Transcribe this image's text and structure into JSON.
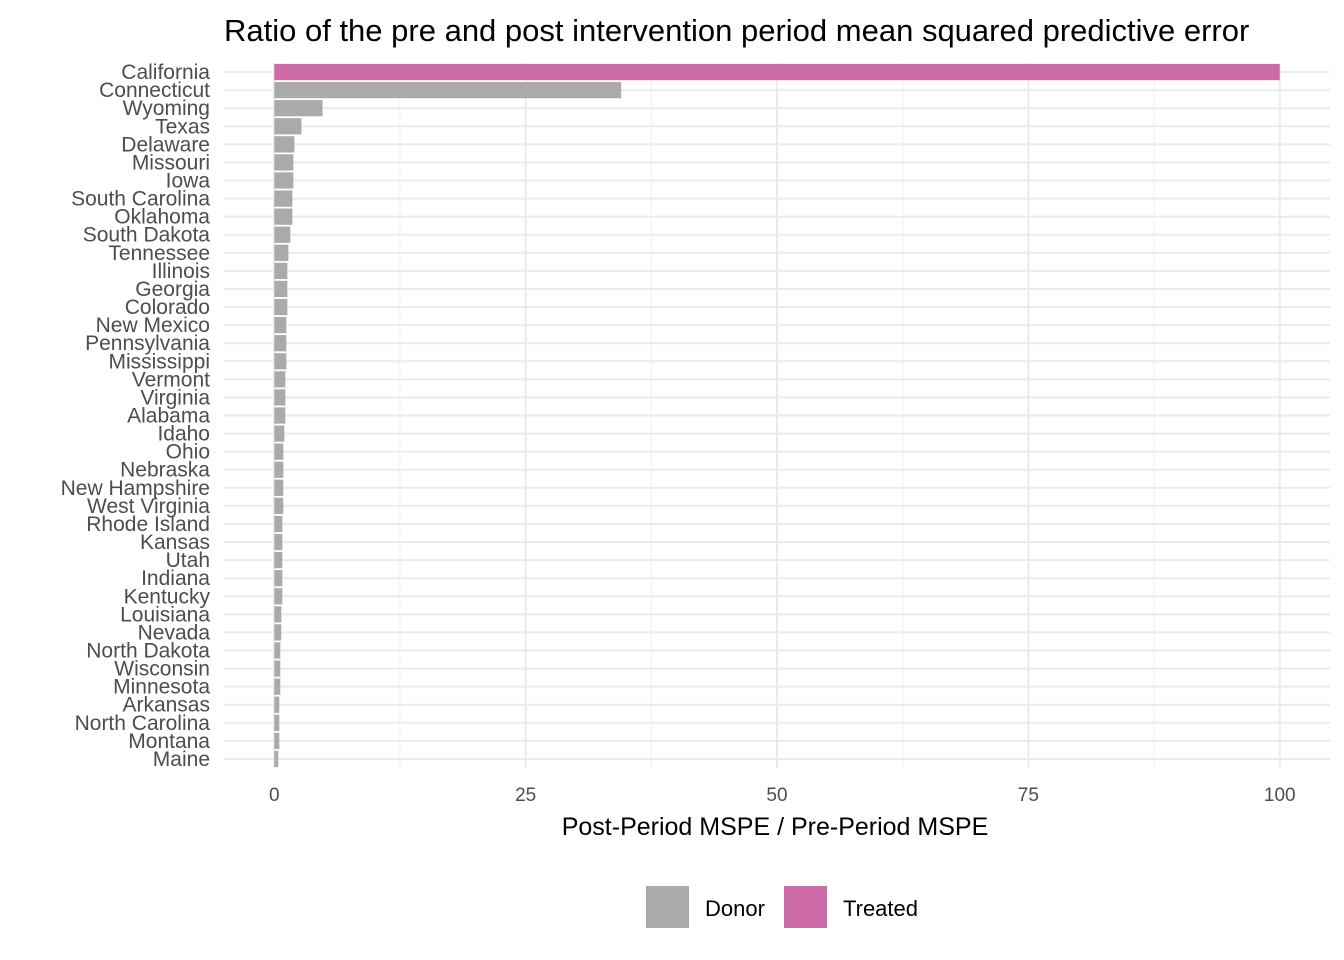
{
  "chart_data": {
    "type": "bar",
    "orientation": "horizontal",
    "title": "Ratio of the pre and post intervention period mean squared predictive error",
    "xlabel": "Post-Period MSPE / Pre-Period MSPE",
    "ylabel": "",
    "xlim": [
      -5,
      105
    ],
    "x_ticks": [
      0,
      25,
      50,
      75,
      100
    ],
    "x_tick_labels": [
      "0",
      "25",
      "50",
      "75",
      "100"
    ],
    "grid": true,
    "legend_position": "bottom",
    "legend": [
      {
        "name": "Donor",
        "color": "#aaaaaa"
      },
      {
        "name": "Treated",
        "color": "#cc6ba8"
      }
    ],
    "categories": [
      "California",
      "Connecticut",
      "Wyoming",
      "Texas",
      "Delaware",
      "Missouri",
      "Iowa",
      "South Carolina",
      "Oklahoma",
      "South Dakota",
      "Tennessee",
      "Illinois",
      "Georgia",
      "Colorado",
      "New Mexico",
      "Pennsylvania",
      "Mississippi",
      "Vermont",
      "Virginia",
      "Alabama",
      "Idaho",
      "Ohio",
      "Nebraska",
      "New Hampshire",
      "West Virginia",
      "Rhode Island",
      "Kansas",
      "Utah",
      "Indiana",
      "Kentucky",
      "Louisiana",
      "Nevada",
      "North Dakota",
      "Wisconsin",
      "Minnesota",
      "Arkansas",
      "North Carolina",
      "Montana",
      "Maine"
    ],
    "values": [
      100,
      34.5,
      4.8,
      2.7,
      2.0,
      1.9,
      1.9,
      1.8,
      1.8,
      1.6,
      1.4,
      1.3,
      1.3,
      1.3,
      1.2,
      1.2,
      1.2,
      1.1,
      1.1,
      1.1,
      1.0,
      0.9,
      0.9,
      0.9,
      0.9,
      0.8,
      0.8,
      0.8,
      0.8,
      0.8,
      0.7,
      0.7,
      0.6,
      0.6,
      0.6,
      0.5,
      0.5,
      0.5,
      0.4
    ],
    "groups": [
      "Treated",
      "Donor",
      "Donor",
      "Donor",
      "Donor",
      "Donor",
      "Donor",
      "Donor",
      "Donor",
      "Donor",
      "Donor",
      "Donor",
      "Donor",
      "Donor",
      "Donor",
      "Donor",
      "Donor",
      "Donor",
      "Donor",
      "Donor",
      "Donor",
      "Donor",
      "Donor",
      "Donor",
      "Donor",
      "Donor",
      "Donor",
      "Donor",
      "Donor",
      "Donor",
      "Donor",
      "Donor",
      "Donor",
      "Donor",
      "Donor",
      "Donor",
      "Donor",
      "Donor",
      "Donor"
    ]
  }
}
